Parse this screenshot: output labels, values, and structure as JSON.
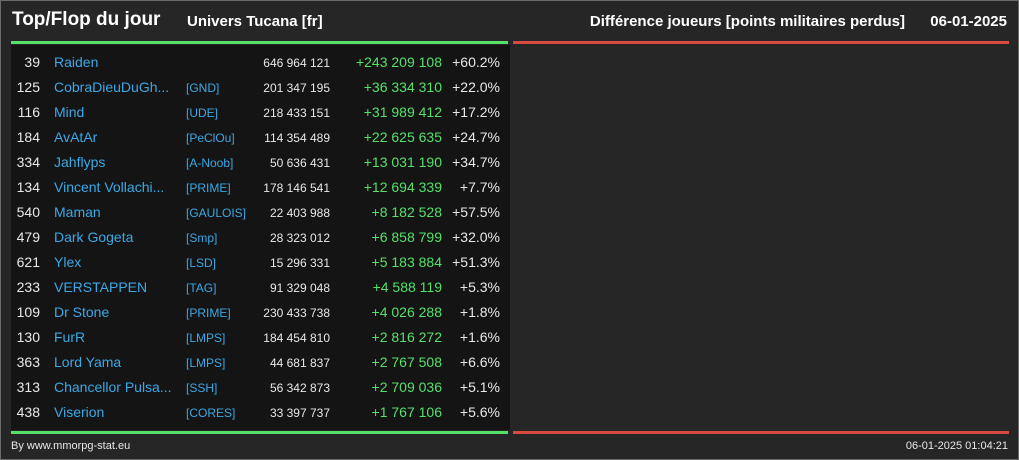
{
  "header": {
    "title": "Top/Flop du jour",
    "universe": "Univers Tucana [fr]",
    "metric": "Différence joueurs [points militaires perdus]",
    "date": "06-01-2025"
  },
  "colors": {
    "positive": "#55e06a",
    "negative": "#d9493f",
    "name": "#3ba8e6"
  },
  "top": [
    {
      "rank": "39",
      "name": "Raiden",
      "ally": "",
      "points": "646 964 121",
      "diff": "+243 209 108",
      "pct": "+60.2%"
    },
    {
      "rank": "125",
      "name": "CobraDieuDuGh...",
      "ally": "[GND]",
      "points": "201 347 195",
      "diff": "+36 334 310",
      "pct": "+22.0%"
    },
    {
      "rank": "116",
      "name": "Mind",
      "ally": "[UDE]",
      "points": "218 433 151",
      "diff": "+31 989 412",
      "pct": "+17.2%"
    },
    {
      "rank": "184",
      "name": "AvAtAr",
      "ally": "[PeClOu]",
      "points": "114 354 489",
      "diff": "+22 625 635",
      "pct": "+24.7%"
    },
    {
      "rank": "334",
      "name": "Jahflyps",
      "ally": "[A-Noob]",
      "points": "50 636 431",
      "diff": "+13 031 190",
      "pct": "+34.7%"
    },
    {
      "rank": "134",
      "name": "Vincent Vollachi...",
      "ally": "[PRIME]",
      "points": "178 146 541",
      "diff": "+12 694 339",
      "pct": "+7.7%"
    },
    {
      "rank": "540",
      "name": "Maman",
      "ally": "[GAULOIS]",
      "points": "22 403 988",
      "diff": "+8 182 528",
      "pct": "+57.5%"
    },
    {
      "rank": "479",
      "name": "Dark Gogeta",
      "ally": "[Smp]",
      "points": "28 323 012",
      "diff": "+6 858 799",
      "pct": "+32.0%"
    },
    {
      "rank": "621",
      "name": "Ylex",
      "ally": "[LSD]",
      "points": "15 296 331",
      "diff": "+5 183 884",
      "pct": "+51.3%"
    },
    {
      "rank": "233",
      "name": "VERSTAPPEN",
      "ally": "[TAG]",
      "points": "91 329 048",
      "diff": "+4 588 119",
      "pct": "+5.3%"
    },
    {
      "rank": "109",
      "name": "Dr Stone",
      "ally": "[PRIME]",
      "points": "230 433 738",
      "diff": "+4 026 288",
      "pct": "+1.8%"
    },
    {
      "rank": "130",
      "name": "FurR",
      "ally": "[LMPS]",
      "points": "184 454 810",
      "diff": "+2 816 272",
      "pct": "+1.6%"
    },
    {
      "rank": "363",
      "name": "Lord Yama",
      "ally": "[LMPS]",
      "points": "44 681 837",
      "diff": "+2 767 508",
      "pct": "+6.6%"
    },
    {
      "rank": "313",
      "name": "Chancellor Pulsa...",
      "ally": "[SSH]",
      "points": "56 342 873",
      "diff": "+2 709 036",
      "pct": "+5.1%"
    },
    {
      "rank": "438",
      "name": "Viserion",
      "ally": "[CORES]",
      "points": "33 397 737",
      "diff": "+1 767 106",
      "pct": "+5.6%"
    }
  ],
  "footer": {
    "credit": "By www.mmorpg-stat.eu",
    "timestamp": "06-01-2025 01:04:21"
  }
}
